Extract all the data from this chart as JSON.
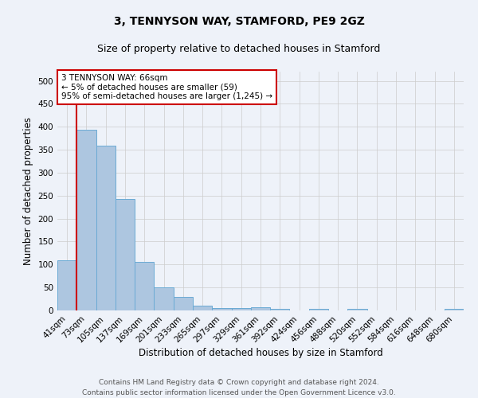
{
  "title": "3, TENNYSON WAY, STAMFORD, PE9 2GZ",
  "subtitle": "Size of property relative to detached houses in Stamford",
  "xlabel": "Distribution of detached houses by size in Stamford",
  "ylabel": "Number of detached properties",
  "footer_line1": "Contains HM Land Registry data © Crown copyright and database right 2024.",
  "footer_line2": "Contains public sector information licensed under the Open Government Licence v3.0.",
  "annotation_line1": "3 TENNYSON WAY: 66sqm",
  "annotation_line2": "← 5% of detached houses are smaller (59)",
  "annotation_line3": "95% of semi-detached houses are larger (1,245) →",
  "bar_labels": [
    "41sqm",
    "73sqm",
    "105sqm",
    "137sqm",
    "169sqm",
    "201sqm",
    "233sqm",
    "265sqm",
    "297sqm",
    "329sqm",
    "361sqm",
    "392sqm",
    "424sqm",
    "456sqm",
    "488sqm",
    "520sqm",
    "552sqm",
    "584sqm",
    "616sqm",
    "648sqm",
    "680sqm"
  ],
  "bar_values": [
    110,
    393,
    358,
    243,
    105,
    50,
    30,
    11,
    6,
    6,
    7,
    4,
    0,
    3,
    0,
    4,
    0,
    0,
    0,
    0,
    4
  ],
  "bar_color": "#adc6e0",
  "bar_edge_color": "#6aaad4",
  "ylim": [
    0,
    520
  ],
  "yticks": [
    0,
    50,
    100,
    150,
    200,
    250,
    300,
    350,
    400,
    450,
    500
  ],
  "bg_color": "#eef2f9",
  "grid_color": "#cccccc",
  "annotation_box_color": "#ffffff",
  "annotation_box_edge": "#cc0000",
  "red_line_color": "#cc0000",
  "title_fontsize": 10,
  "subtitle_fontsize": 9,
  "axis_label_fontsize": 8.5,
  "tick_fontsize": 7.5,
  "annotation_fontsize": 7.5,
  "footer_fontsize": 6.5
}
